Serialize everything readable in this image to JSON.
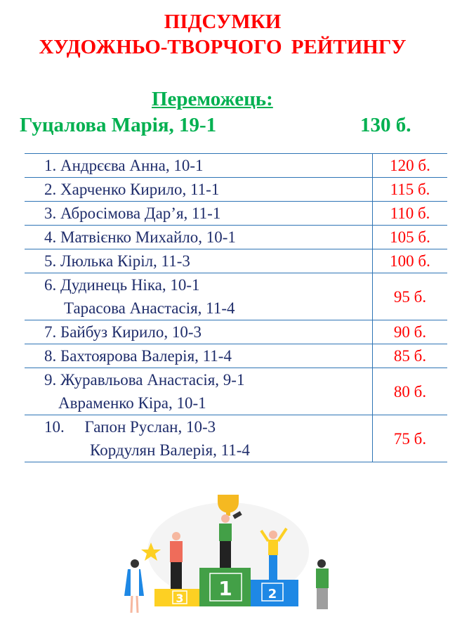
{
  "title": {
    "line1": "ПІДСУМКИ",
    "line2": "ХУДОЖНЬО-ТВОРЧОГО  РЕЙТИНГУ"
  },
  "winner": {
    "label": "Переможець:",
    "name": "Гуцалова Марія, 19-1",
    "score": "130 б."
  },
  "rows": [
    {
      "lines": [
        "1. Андрєєва Анна, 10-1"
      ],
      "score": "120 б."
    },
    {
      "lines": [
        "2. Харченко Кирило, 11-1"
      ],
      "score": "115 б."
    },
    {
      "lines": [
        "3. Абросімова Дар’я, 11-1"
      ],
      "score": "110 б."
    },
    {
      "lines": [
        "4. Матвієнко Михайло, 10-1"
      ],
      "score": "105 б."
    },
    {
      "lines": [
        "5. Люлька Кіріл, 11-3"
      ],
      "score": "100 б."
    },
    {
      "lines": [
        "6. Дудинець Ніка, 10-1",
        "Тарасова Анастасія, 11-4"
      ],
      "score": "95 б."
    },
    {
      "lines": [
        "7. Байбуз Кирило, 10-3"
      ],
      "score": "90 б."
    },
    {
      "lines": [
        "8. Бахтоярова Валерія, 11-4"
      ],
      "score": "85 б."
    },
    {
      "lines": [
        "9. Журавльова Анастасія, 9-1",
        "Авраменко Кіра, 10-1"
      ],
      "score": "80 б."
    },
    {
      "lines": [
        "10.     Гапон Руслан, 10-3",
        "Кордулян Валерія, 11-4"
      ],
      "score": "75 б."
    }
  ],
  "illustration": {
    "podium_labels": [
      "3",
      "1",
      "2"
    ]
  },
  "colors": {
    "title": "#ff0000",
    "winner": "#00b050",
    "names": "#1f2d6b",
    "scores": "#ff0000",
    "rules": "#2e74b5"
  }
}
